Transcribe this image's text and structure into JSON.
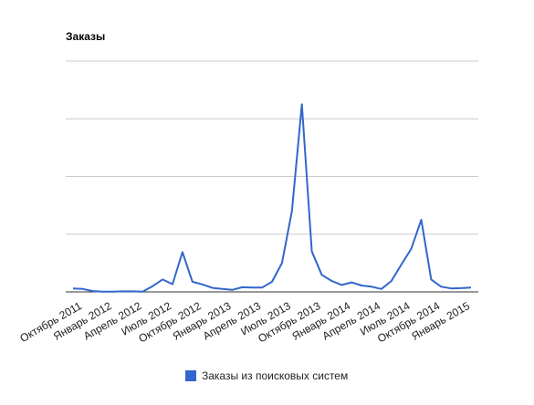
{
  "chart_data": {
    "type": "line",
    "title": "Заказы",
    "xlabel": "",
    "ylabel": "",
    "grid": true,
    "gridline_count": 4,
    "legend_position": "bottom",
    "x_tick_labels": [
      {
        "label": "Октябрь 2011",
        "month_index": 0
      },
      {
        "label": "Январь 2012",
        "month_index": 3
      },
      {
        "label": "Апрель 2012",
        "month_index": 6
      },
      {
        "label": "Июль 2012",
        "month_index": 9
      },
      {
        "label": "Октябрь 2012",
        "month_index": 12
      },
      {
        "label": "Январь 2013",
        "month_index": 15
      },
      {
        "label": "Апрель 2013",
        "month_index": 18
      },
      {
        "label": "Июль 2013",
        "month_index": 21
      },
      {
        "label": "Октябрь 2013",
        "month_index": 24
      },
      {
        "label": "Январь 2014",
        "month_index": 27
      },
      {
        "label": "Апрель 2014",
        "month_index": 30
      },
      {
        "label": "Июль 2014",
        "month_index": 33
      },
      {
        "label": "Октябрь 2014",
        "month_index": 36
      },
      {
        "label": "Январь 2015",
        "month_index": 39
      }
    ],
    "series": [
      {
        "name": "Заказы из поисковых систем",
        "color": "#3366cc",
        "values": [
          1.2,
          1.0,
          0.3,
          0.1,
          0.1,
          0.2,
          0.2,
          0.1,
          2.0,
          4.3,
          2.7,
          13.8,
          3.5,
          2.6,
          1.4,
          1.0,
          0.7,
          1.6,
          1.5,
          1.5,
          3.5,
          10.0,
          28.0,
          65.0,
          14.0,
          5.9,
          3.8,
          2.4,
          3.3,
          2.2,
          1.8,
          1.0,
          3.8,
          9.5,
          15.0,
          25.0,
          4.3,
          1.8,
          1.2,
          1.3,
          1.5
        ]
      }
    ],
    "ylim": [
      0,
      80
    ]
  }
}
